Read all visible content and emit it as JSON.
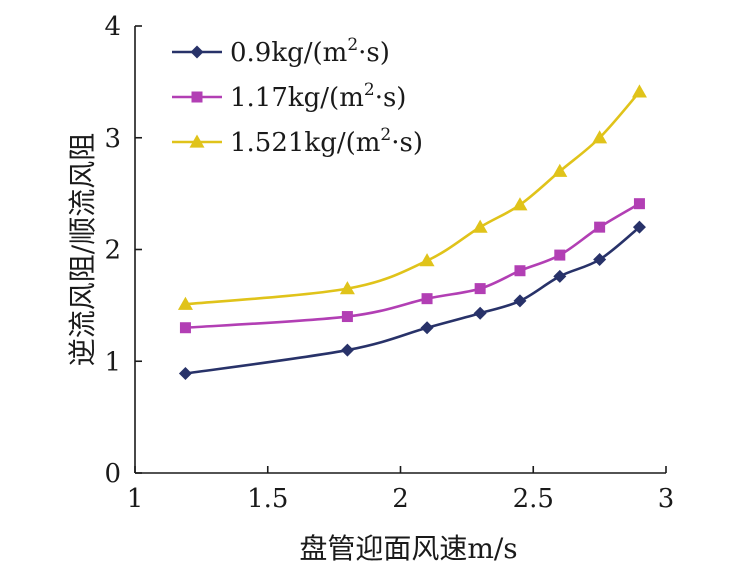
{
  "chart_data": {
    "type": "line",
    "title": "",
    "xlabel": "盘管迎面风速m/s",
    "ylabel": "逆流风阻/顺流风阻",
    "xlim": [
      1,
      3
    ],
    "ylim": [
      0,
      4
    ],
    "xticks": [
      "1",
      "1.5",
      "2",
      "2.5",
      "3"
    ],
    "yticks": [
      "0",
      "1",
      "2",
      "3",
      "4"
    ],
    "grid": false,
    "legend_position": "top-left",
    "series": [
      {
        "name": "0.9kg/(m²·s)",
        "name_base": "0.9kg/(m",
        "name_sup": "2",
        "name_tail": "·s)",
        "color": "#283269",
        "marker": "diamond",
        "x": [
          1.19,
          1.8,
          2.1,
          2.3,
          2.45,
          2.6,
          2.75,
          2.9
        ],
        "y": [
          0.89,
          1.1,
          1.3,
          1.43,
          1.54,
          1.76,
          1.91,
          2.2
        ]
      },
      {
        "name": "1.17kg/(m²·s)",
        "name_base": "1.17kg/(m",
        "name_sup": "2",
        "name_tail": "·s)",
        "color": "#b23fb4",
        "marker": "square",
        "x": [
          1.19,
          1.8,
          2.1,
          2.3,
          2.45,
          2.6,
          2.75,
          2.9
        ],
        "y": [
          1.3,
          1.4,
          1.56,
          1.65,
          1.81,
          1.95,
          2.2,
          2.41
        ]
      },
      {
        "name": "1.521kg/(m²·s)",
        "name_base": "1.521kg/(m",
        "name_sup": "2",
        "name_tail": "·s)",
        "color": "#e0c31a",
        "marker": "triangle",
        "x": [
          1.19,
          1.8,
          2.1,
          2.3,
          2.45,
          2.6,
          2.75,
          2.9
        ],
        "y": [
          1.51,
          1.65,
          1.9,
          2.2,
          2.4,
          2.7,
          3.0,
          3.41
        ]
      }
    ]
  }
}
